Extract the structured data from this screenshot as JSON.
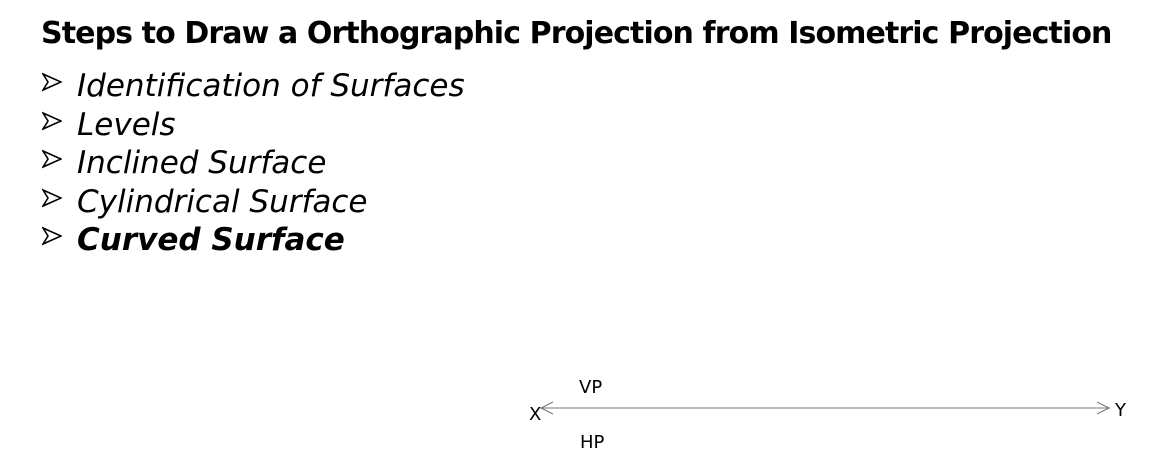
{
  "slide": {
    "title": "Steps to Draw a Orthographic Projection from Isometric Projection"
  },
  "steps": [
    {
      "label": "Identification of Surfaces",
      "emphasized": false
    },
    {
      "label": "Levels",
      "emphasized": false
    },
    {
      "label": "Inclined Surface",
      "emphasized": false
    },
    {
      "label": "Cylindrical Surface",
      "emphasized": false
    },
    {
      "label": "Curved Surface",
      "emphasized": true
    }
  ],
  "bullet_icon": "arrowhead-bullet-icon",
  "reference_line": {
    "left_label": "X",
    "right_label": "Y",
    "upper_label": "VP",
    "lower_label": "HP"
  }
}
